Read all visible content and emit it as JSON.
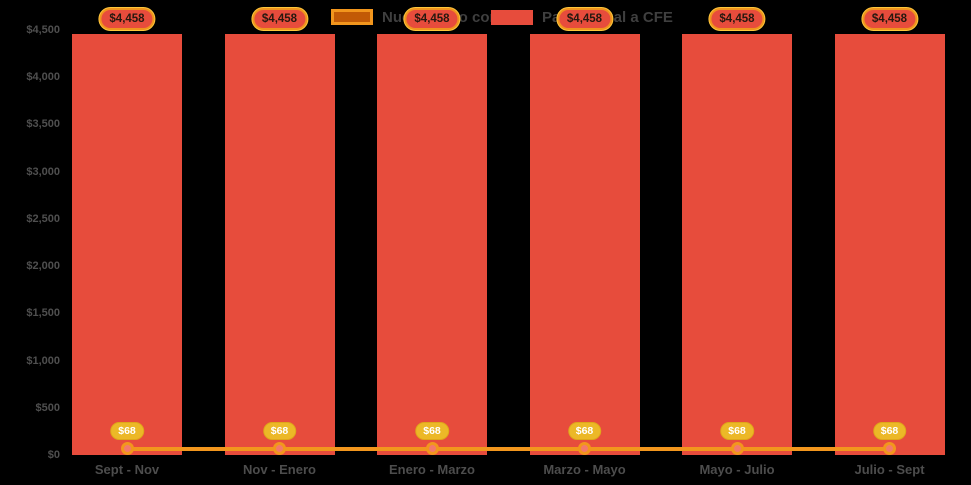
{
  "chart_data": {
    "type": "bar",
    "title": "",
    "categories": [
      "Sept - Nov",
      "Nov - Enero",
      "Enero - Marzo",
      "Marzo - Mayo",
      "Mayo - Julio",
      "Julio - Sept"
    ],
    "series": [
      {
        "name": "Nuevo pago con CFE",
        "type": "line",
        "values": [
          68,
          68,
          68,
          68,
          68,
          68
        ],
        "value_labels": [
          "$68",
          "$68",
          "$68",
          "$68",
          "$68",
          "$68"
        ],
        "color": "#f2961d",
        "marker_fill": "#f4796b",
        "label_bg": "#ecb827",
        "label_text_color": "#ffffff",
        "legend_swatch_fill": "#c25a06"
      },
      {
        "name": "Pago actual a CFE",
        "type": "bar",
        "values": [
          4458,
          4458,
          4458,
          4458,
          4458,
          4458
        ],
        "value_labels": [
          "$4,458",
          "$4,458",
          "$4,458",
          "$4,458",
          "$4,458",
          "$4,458"
        ],
        "color": "#e74c3c",
        "label_bg": "#e74c3c",
        "label_border": "#f0941e",
        "label_text_color": "#26180f"
      }
    ],
    "y_axis": {
      "min": 0,
      "max": 4500,
      "tick_step": 500,
      "tick_labels": [
        "$0",
        "$500",
        "$1,000",
        "$1,500",
        "$2,000",
        "$2,500",
        "$3,000",
        "$3,500",
        "$4,000",
        "$4,500"
      ],
      "tick_label_color": "#4f4f4f"
    },
    "x_axis": {
      "label_color": "#4d4d4d"
    },
    "grid": false,
    "legend_position": "top-center",
    "background": "#000000"
  },
  "legend": {
    "items": [
      {
        "label": "Nuevo pago con CFE"
      },
      {
        "label": "Pago actual a CFE"
      }
    ]
  }
}
